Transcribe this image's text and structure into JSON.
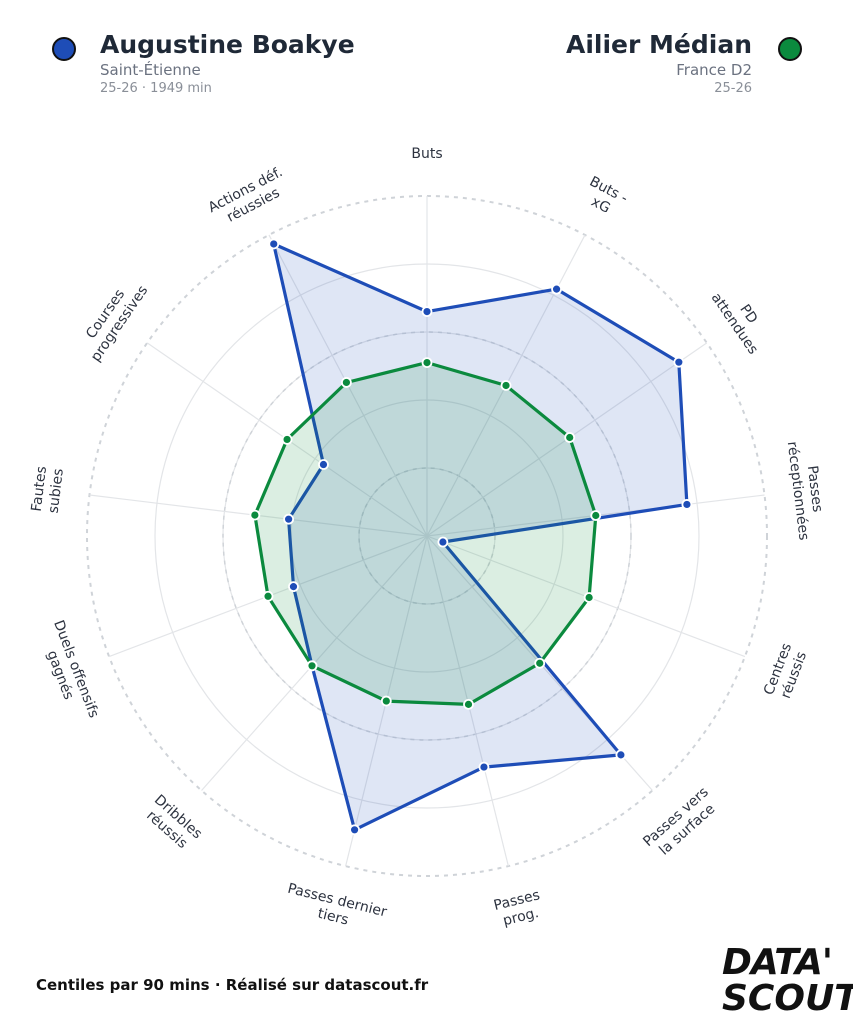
{
  "header": {
    "player": {
      "name": "Augustine Boakye",
      "team": "Saint-Étienne",
      "season_minutes": "25-26 · 1949 min",
      "color": "#1e4db7"
    },
    "comparison": {
      "name": "Ailier Médian",
      "league": "France D2",
      "season": "25-26",
      "color": "#0b8a3e"
    }
  },
  "chart_data": {
    "type": "radar",
    "axes": [
      "Buts",
      "Buts -\nxG",
      "PD\nattendues",
      "Passes\nréceptionnées",
      "Centres\nréussis",
      "Passes vers\nla surface",
      "Passes\nprog.",
      "Passes dernier\ntiers",
      "Dribbles\nréussis",
      "Duels offensifs\ngagnés",
      "Fautes\nsubies",
      "Courses\nprogressives",
      "Actions déf.\nréussies"
    ],
    "range": [
      0,
      100
    ],
    "series": [
      {
        "name": "Augustine Boakye",
        "color": "#1e4db7",
        "values": [
          66,
          82,
          90,
          77,
          5,
          86,
          70,
          89,
          51,
          42,
          41,
          37,
          97
        ]
      },
      {
        "name": "Ailier Médian",
        "color": "#0b8a3e",
        "values": [
          51,
          50,
          51,
          50,
          51,
          50,
          51,
          50,
          51,
          50,
          51,
          50,
          51
        ]
      }
    ]
  },
  "footer": {
    "text": "Centiles par 90 mins · Réalisé sur datascout.fr"
  },
  "logo": {
    "line1": "DATA'",
    "line2": "SCOUT"
  }
}
